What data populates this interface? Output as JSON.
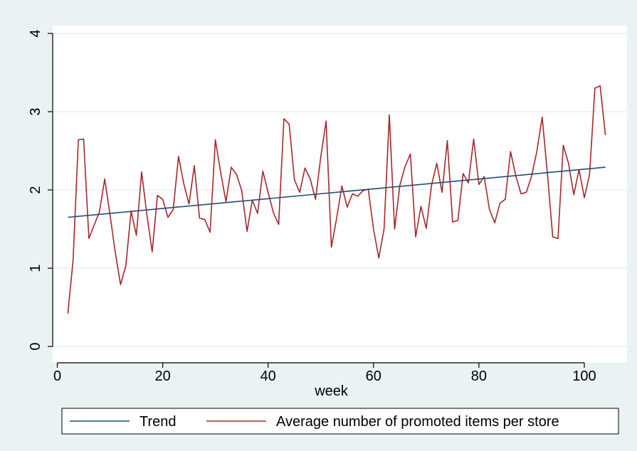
{
  "chart_data": {
    "type": "line",
    "title": "",
    "xlabel": "week",
    "ylabel": "",
    "xlim": [
      0,
      104
    ],
    "ylim": [
      0,
      4
    ],
    "xticks": [
      0,
      20,
      40,
      60,
      80,
      100
    ],
    "yticks": [
      0,
      1,
      2,
      3,
      4
    ],
    "grid": "horizontal",
    "legend_position": "bottom",
    "series": [
      {
        "name": "Trend",
        "color": "#1f4e79",
        "x": [
          2,
          104
        ],
        "y": [
          1.65,
          2.29
        ]
      },
      {
        "name": "Average number of promoted items per store",
        "color": "#a3282a",
        "x": [
          2,
          3,
          4,
          5,
          6,
          7,
          8,
          9,
          10,
          11,
          12,
          13,
          14,
          15,
          16,
          17,
          18,
          19,
          20,
          21,
          22,
          23,
          24,
          25,
          26,
          27,
          28,
          29,
          30,
          31,
          32,
          33,
          34,
          35,
          36,
          37,
          38,
          39,
          40,
          41,
          42,
          43,
          44,
          45,
          46,
          47,
          48,
          49,
          50,
          51,
          52,
          53,
          54,
          55,
          56,
          57,
          58,
          59,
          60,
          61,
          62,
          63,
          64,
          65,
          66,
          67,
          68,
          69,
          70,
          71,
          72,
          73,
          74,
          75,
          76,
          77,
          78,
          79,
          80,
          81,
          82,
          83,
          84,
          85,
          86,
          87,
          88,
          89,
          90,
          91,
          92,
          93,
          94,
          95,
          96,
          97,
          98,
          99,
          100,
          101,
          102,
          103,
          104
        ],
        "y": [
          0.42,
          1.1,
          2.64,
          2.65,
          1.38,
          1.55,
          1.72,
          2.14,
          1.68,
          1.2,
          0.79,
          1.03,
          1.73,
          1.42,
          2.23,
          1.68,
          1.21,
          1.93,
          1.88,
          1.65,
          1.75,
          2.43,
          2.08,
          1.82,
          2.31,
          1.64,
          1.62,
          1.46,
          2.64,
          2.22,
          1.85,
          2.29,
          2.2,
          1.99,
          1.47,
          1.87,
          1.7,
          2.24,
          1.97,
          1.71,
          1.56,
          2.91,
          2.84,
          2.13,
          1.97,
          2.28,
          2.14,
          1.88,
          2.43,
          2.88,
          1.27,
          1.64,
          2.05,
          1.78,
          1.95,
          1.92,
          1.99,
          2.01,
          1.5,
          1.13,
          1.5,
          2.96,
          1.5,
          2.06,
          2.3,
          2.46,
          1.4,
          1.79,
          1.51,
          2.06,
          2.34,
          1.97,
          2.63,
          1.59,
          1.61,
          2.21,
          2.09,
          2.65,
          2.07,
          2.17,
          1.75,
          1.58,
          1.83,
          1.88,
          2.49,
          2.18,
          1.95,
          1.97,
          2.18,
          2.5,
          2.93,
          2.2,
          1.4,
          1.38,
          2.57,
          2.34,
          1.94,
          2.26,
          1.9,
          2.2,
          3.3,
          3.33,
          2.7
        ]
      }
    ]
  }
}
